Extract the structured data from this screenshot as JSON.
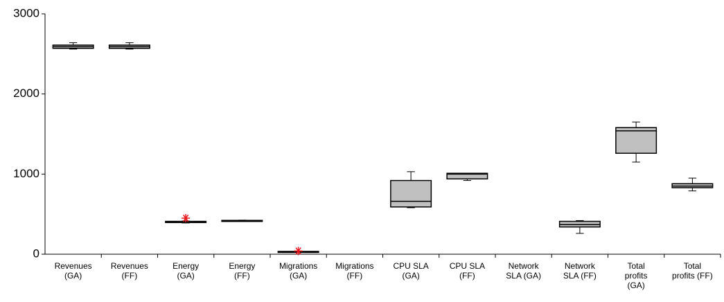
{
  "chart_data": {
    "type": "box",
    "categories": [
      [
        "Revenues",
        "(GA)"
      ],
      [
        "Revenues",
        "(FF)"
      ],
      [
        "Energy",
        "(GA)"
      ],
      [
        "Energy",
        "(FF)"
      ],
      [
        "Migrations",
        "(GA)"
      ],
      [
        "Migrations",
        "(FF)"
      ],
      [
        "CPU SLA",
        "(GA)"
      ],
      [
        "CPU SLA",
        "(FF)"
      ],
      [
        "Network",
        "SLA (GA)"
      ],
      [
        "Network",
        "SLA (FF)"
      ],
      [
        "Total",
        "profits",
        "(GA)"
      ],
      [
        "Total",
        "profits (FF)"
      ]
    ],
    "min": [
      2560,
      2560,
      390,
      415,
      25,
      null,
      580,
      920,
      null,
      260,
      1150,
      790
    ],
    "q1": [
      2570,
      2570,
      395,
      418,
      25,
      null,
      590,
      940,
      null,
      340,
      1260,
      830
    ],
    "median": [
      2590,
      2590,
      400,
      420,
      30,
      null,
      660,
      1000,
      null,
      370,
      1540,
      850
    ],
    "q3": [
      2610,
      2610,
      410,
      422,
      35,
      null,
      920,
      1010,
      null,
      410,
      1580,
      880
    ],
    "max": [
      2640,
      2640,
      415,
      425,
      35,
      null,
      1030,
      1010,
      null,
      420,
      1650,
      950
    ],
    "outliers": [
      [],
      [],
      [
        450
      ],
      [],
      [
        40
      ],
      [],
      [],
      [],
      [],
      [],
      [],
      []
    ],
    "color": "#c0c0c0",
    "outlier_color": "#e8141a",
    "ylim": [
      0,
      3000
    ],
    "yticks": [
      0,
      1000,
      2000,
      3000
    ]
  }
}
